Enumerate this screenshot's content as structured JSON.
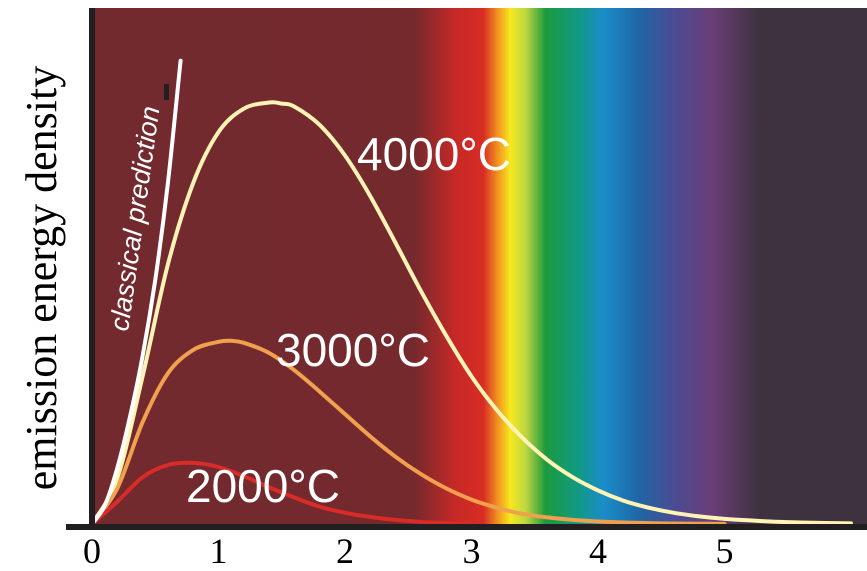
{
  "chart_data": {
    "type": "line",
    "title": "",
    "xlabel": "",
    "ylabel": "emission energy density",
    "xlim": [
      0,
      6
    ],
    "ylim": [
      0,
      4.5
    ],
    "x_ticks": [
      "0",
      "1",
      "2",
      "3",
      "4",
      "5"
    ],
    "background_spectrum": {
      "dark_red": "#722a2f",
      "spectrum_start_x": 2.6,
      "visible_band_x": [
        3.1,
        4.1
      ],
      "ir_end_x": 5.0,
      "ultraviolet_dark": "#3e323f"
    },
    "series": [
      {
        "name": "4000°C",
        "color": "#fff3b6",
        "x": [
          0,
          0.2,
          0.4,
          0.6,
          0.8,
          1.0,
          1.2,
          1.4,
          1.5,
          1.6,
          1.8,
          2.0,
          2.2,
          2.4,
          2.6,
          2.8,
          3.0,
          3.2,
          3.4,
          3.6,
          3.8,
          4.0,
          4.2,
          4.4,
          4.6,
          4.8,
          5.0,
          5.2,
          5.4,
          5.6,
          5.8,
          6.0
        ],
        "y": [
          0,
          0.45,
          1.45,
          2.55,
          3.35,
          3.85,
          4.08,
          4.14,
          4.13,
          4.1,
          3.92,
          3.62,
          3.22,
          2.76,
          2.29,
          1.85,
          1.45,
          1.12,
          0.85,
          0.63,
          0.46,
          0.33,
          0.23,
          0.16,
          0.11,
          0.075,
          0.05,
          0.035,
          0.023,
          0.015,
          0.01,
          0.006
        ]
      },
      {
        "name": "3000°C",
        "color": "#f1a04e",
        "x": [
          0,
          0.2,
          0.4,
          0.6,
          0.8,
          1.0,
          1.1,
          1.2,
          1.4,
          1.6,
          1.8,
          2.0,
          2.2,
          2.4,
          2.6,
          2.8,
          3.0,
          3.2,
          3.4,
          3.6,
          3.8,
          4.0,
          4.2,
          4.4,
          4.6,
          4.8,
          5.0
        ],
        "y": [
          0,
          0.35,
          1.0,
          1.48,
          1.71,
          1.79,
          1.8,
          1.78,
          1.68,
          1.51,
          1.3,
          1.08,
          0.86,
          0.66,
          0.49,
          0.35,
          0.24,
          0.16,
          0.1,
          0.065,
          0.04,
          0.025,
          0.015,
          0.009,
          0.005,
          0.003,
          0.001
        ]
      },
      {
        "name": "2000°C",
        "color": "#d92b28",
        "x": [
          0,
          0.2,
          0.4,
          0.6,
          0.8,
          1.0,
          1.2,
          1.4,
          1.6,
          1.8,
          2.0,
          2.2,
          2.4,
          2.6,
          2.8,
          3.0
        ],
        "y": [
          0,
          0.22,
          0.46,
          0.58,
          0.6,
          0.56,
          0.47,
          0.36,
          0.26,
          0.17,
          0.11,
          0.07,
          0.04,
          0.02,
          0.01,
          0.004
        ]
      },
      {
        "name": "classical prediction",
        "color": "#ffffff",
        "x": [
          0,
          0.1,
          0.2,
          0.3,
          0.4,
          0.5,
          0.6,
          0.7
        ],
        "y": [
          0,
          0.18,
          0.55,
          1.05,
          1.65,
          2.4,
          3.35,
          4.55
        ]
      }
    ]
  }
}
